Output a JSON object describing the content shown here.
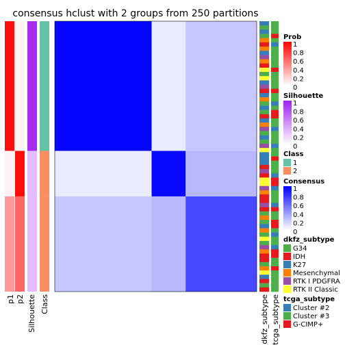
{
  "chart_data": {
    "type": "heatmap",
    "title": "consensus hclust with 2 groups from 250 partitions",
    "row_annotations": [
      "p1",
      "p2",
      "Silhouette",
      "Class"
    ],
    "col_annotations": [
      "dkfz_subtype",
      "tcga_subtype"
    ],
    "groups": [
      {
        "class": "1",
        "size": 94,
        "p1": 0.95,
        "p2": 0.05,
        "silhouette": 0.95
      },
      {
        "class": "2",
        "size": 33,
        "p1": 0.05,
        "p2": 0.95,
        "silhouette": 0.3
      },
      {
        "class": "2",
        "size": 69,
        "p1": 0.4,
        "p2": 0.6,
        "silhouette": 0.3
      }
    ],
    "consensus_blocks": [
      [
        0.98,
        0.08,
        0.22
      ],
      [
        0.08,
        0.97,
        0.28
      ],
      [
        0.22,
        0.28,
        0.72
      ]
    ],
    "legends": {
      "prob": {
        "title": "Prob",
        "ticks": [
          "1",
          "0.8",
          "0.6",
          "0.4",
          "0.2",
          "0"
        ],
        "low": "#ffffff",
        "high": "#ff0000"
      },
      "silhouette": {
        "title": "Silhouette",
        "ticks": [
          "1",
          "0.8",
          "0.6",
          "0.4",
          "0.2",
          "0"
        ],
        "low": "#ffffff",
        "high": "#a020f0"
      },
      "class": {
        "title": "Class",
        "items": [
          {
            "label": "1",
            "color": "#66c2a5"
          },
          {
            "label": "2",
            "color": "#fc8d62"
          }
        ]
      },
      "consensus": {
        "title": "Consensus",
        "ticks": [
          "1",
          "0.8",
          "0.6",
          "0.4",
          "0.2",
          "0"
        ],
        "low": "#ffffff",
        "high": "#0000ff"
      },
      "dkfz_subtype": {
        "title": "dkfz_subtype",
        "items": [
          {
            "label": "G34",
            "color": "#4daf4a"
          },
          {
            "label": "IDH",
            "color": "#e41a1c"
          },
          {
            "label": "K27",
            "color": "#377eb8"
          },
          {
            "label": "Mesenchymal",
            "color": "#ff7f00"
          },
          {
            "label": "RTK I PDGFRA",
            "color": "#984ea3"
          },
          {
            "label": "RTK II Classic",
            "color": "#ffff33"
          }
        ]
      },
      "tcga_subtype": {
        "title": "tcga_subtype",
        "items": [
          {
            "label": "Cluster #2",
            "color": "#377eb8"
          },
          {
            "label": "Cluster #3",
            "color": "#4daf4a"
          },
          {
            "label": "G-CIMP+",
            "color": "#e41a1c"
          }
        ]
      }
    }
  }
}
